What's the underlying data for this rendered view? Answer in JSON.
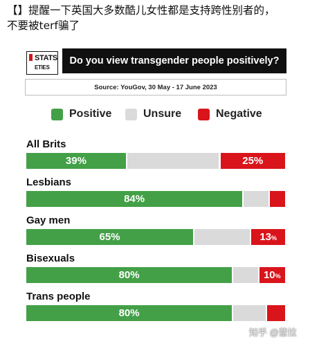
{
  "post": {
    "line1": "【】提醒一下英国大多数酷儿女性都是支持跨性别者的，",
    "line2": "不要被terf骗了"
  },
  "logo": {
    "line1": "STATS",
    "line2": "ETIES"
  },
  "question": "Do you view transgender people positively?",
  "source": "Source: YouGov, 30 May - 17 June 2023",
  "colors": {
    "positive": "#43a047",
    "unsure": "#dadada",
    "negative": "#d9141b"
  },
  "chart_data": {
    "type": "bar",
    "orientation": "horizontal",
    "stacked": true,
    "title": "Do you view transgender people positively?",
    "legend_placement": "top",
    "categories": [
      "All Brits",
      "Lesbians",
      "Gay men",
      "Bisexuals",
      "Trans people"
    ],
    "series": [
      {
        "name": "Positive",
        "values": [
          39,
          84,
          65,
          80,
          80
        ]
      },
      {
        "name": "Unsure",
        "values": [
          36,
          10,
          22,
          10,
          13
        ]
      },
      {
        "name": "Negative",
        "values": [
          25,
          6,
          13,
          10,
          7
        ]
      }
    ],
    "labels": [
      [
        "39%",
        "",
        "25%"
      ],
      [
        "84%",
        "",
        ""
      ],
      [
        "65%",
        "",
        "13%"
      ],
      [
        "80%",
        "",
        "10%"
      ],
      [
        "80%",
        "",
        ""
      ]
    ]
  },
  "watermark": "知乎 @薏拉"
}
